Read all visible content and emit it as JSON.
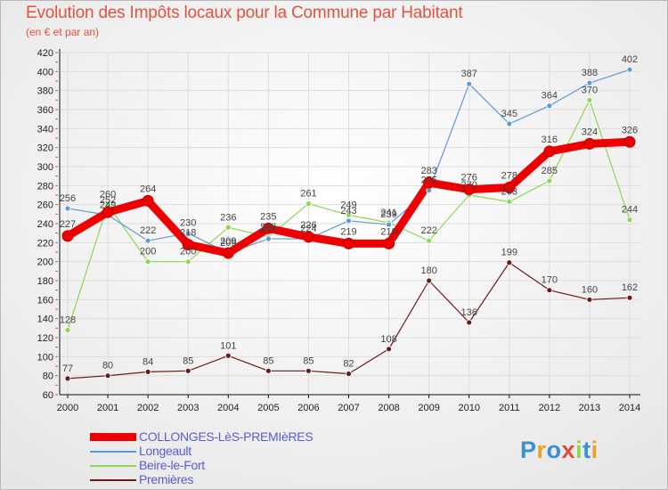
{
  "header": {
    "title": "Evolution des Impôts locaux pour la Commune par Habitant",
    "subtitle": "(en € et par an)"
  },
  "logo": {
    "text": "Proxiti"
  },
  "chart_data": {
    "type": "line",
    "title": "Evolution des Impôts locaux pour la Commune par Habitant",
    "subtitle": "(en € et par an)",
    "xlabel": "",
    "ylabel": "",
    "x": [
      "2000",
      "2001",
      "2002",
      "2003",
      "2004",
      "2005",
      "2006",
      "2007",
      "2008",
      "2009",
      "2010",
      "2011",
      "2012",
      "2013",
      "2014"
    ],
    "yticks": [
      60,
      80,
      100,
      120,
      140,
      160,
      180,
      200,
      220,
      240,
      260,
      280,
      300,
      320,
      340,
      360,
      380,
      400,
      420
    ],
    "ylim": [
      60,
      420
    ],
    "grid": true,
    "legend_position": "bottom-left",
    "series": [
      {
        "name": "COLLONGES-LèS-PREMIèRES",
        "color": "#ee0000",
        "values": [
          227,
          252,
          264,
          218,
          209,
          235,
          226,
          219,
          219,
          283,
          276,
          278,
          316,
          324,
          326
        ],
        "labels": [
          "227",
          "252",
          "264",
          "218",
          "209",
          "235",
          "226",
          "219",
          "219",
          "283",
          "276",
          "278",
          "316",
          "324",
          "326"
        ]
      },
      {
        "name": "Longeault",
        "color": "#5b9bd5",
        "values": [
          256,
          249,
          222,
          230,
          209,
          224,
          224,
          243,
          239,
          275,
          387,
          345,
          364,
          388,
          402
        ],
        "labels": [
          "256",
          "249",
          "222",
          "230",
          "209",
          "224",
          "224",
          "243",
          "239",
          "275",
          "387",
          "345",
          "364",
          "388",
          "402"
        ]
      },
      {
        "name": "Beire-le-Fort",
        "color": "#8ed750",
        "values": [
          128,
          260,
          200,
          200,
          236,
          226,
          261,
          249,
          241,
          222,
          270,
          263,
          285,
          370,
          244
        ],
        "labels": [
          "128",
          "260",
          "200",
          "200",
          "236",
          "226",
          "261",
          "249",
          "241",
          "222",
          "270",
          "263",
          "285",
          "370",
          "244"
        ]
      },
      {
        "name": "Premières",
        "color": "#6b1a1a",
        "values": [
          77,
          80,
          84,
          85,
          101,
          85,
          85,
          82,
          108,
          180,
          136,
          199,
          170,
          160,
          162
        ],
        "labels": [
          "77",
          "80",
          "84",
          "85",
          "101",
          "85",
          "85",
          "82",
          "108",
          "180",
          "136",
          "199",
          "170",
          "160",
          "162"
        ]
      }
    ]
  },
  "colors": {
    "title": "#e0533e",
    "legend_text": "#5b5bd6",
    "axis": "#111111",
    "grid": "#dddddd",
    "label": "#444444"
  }
}
